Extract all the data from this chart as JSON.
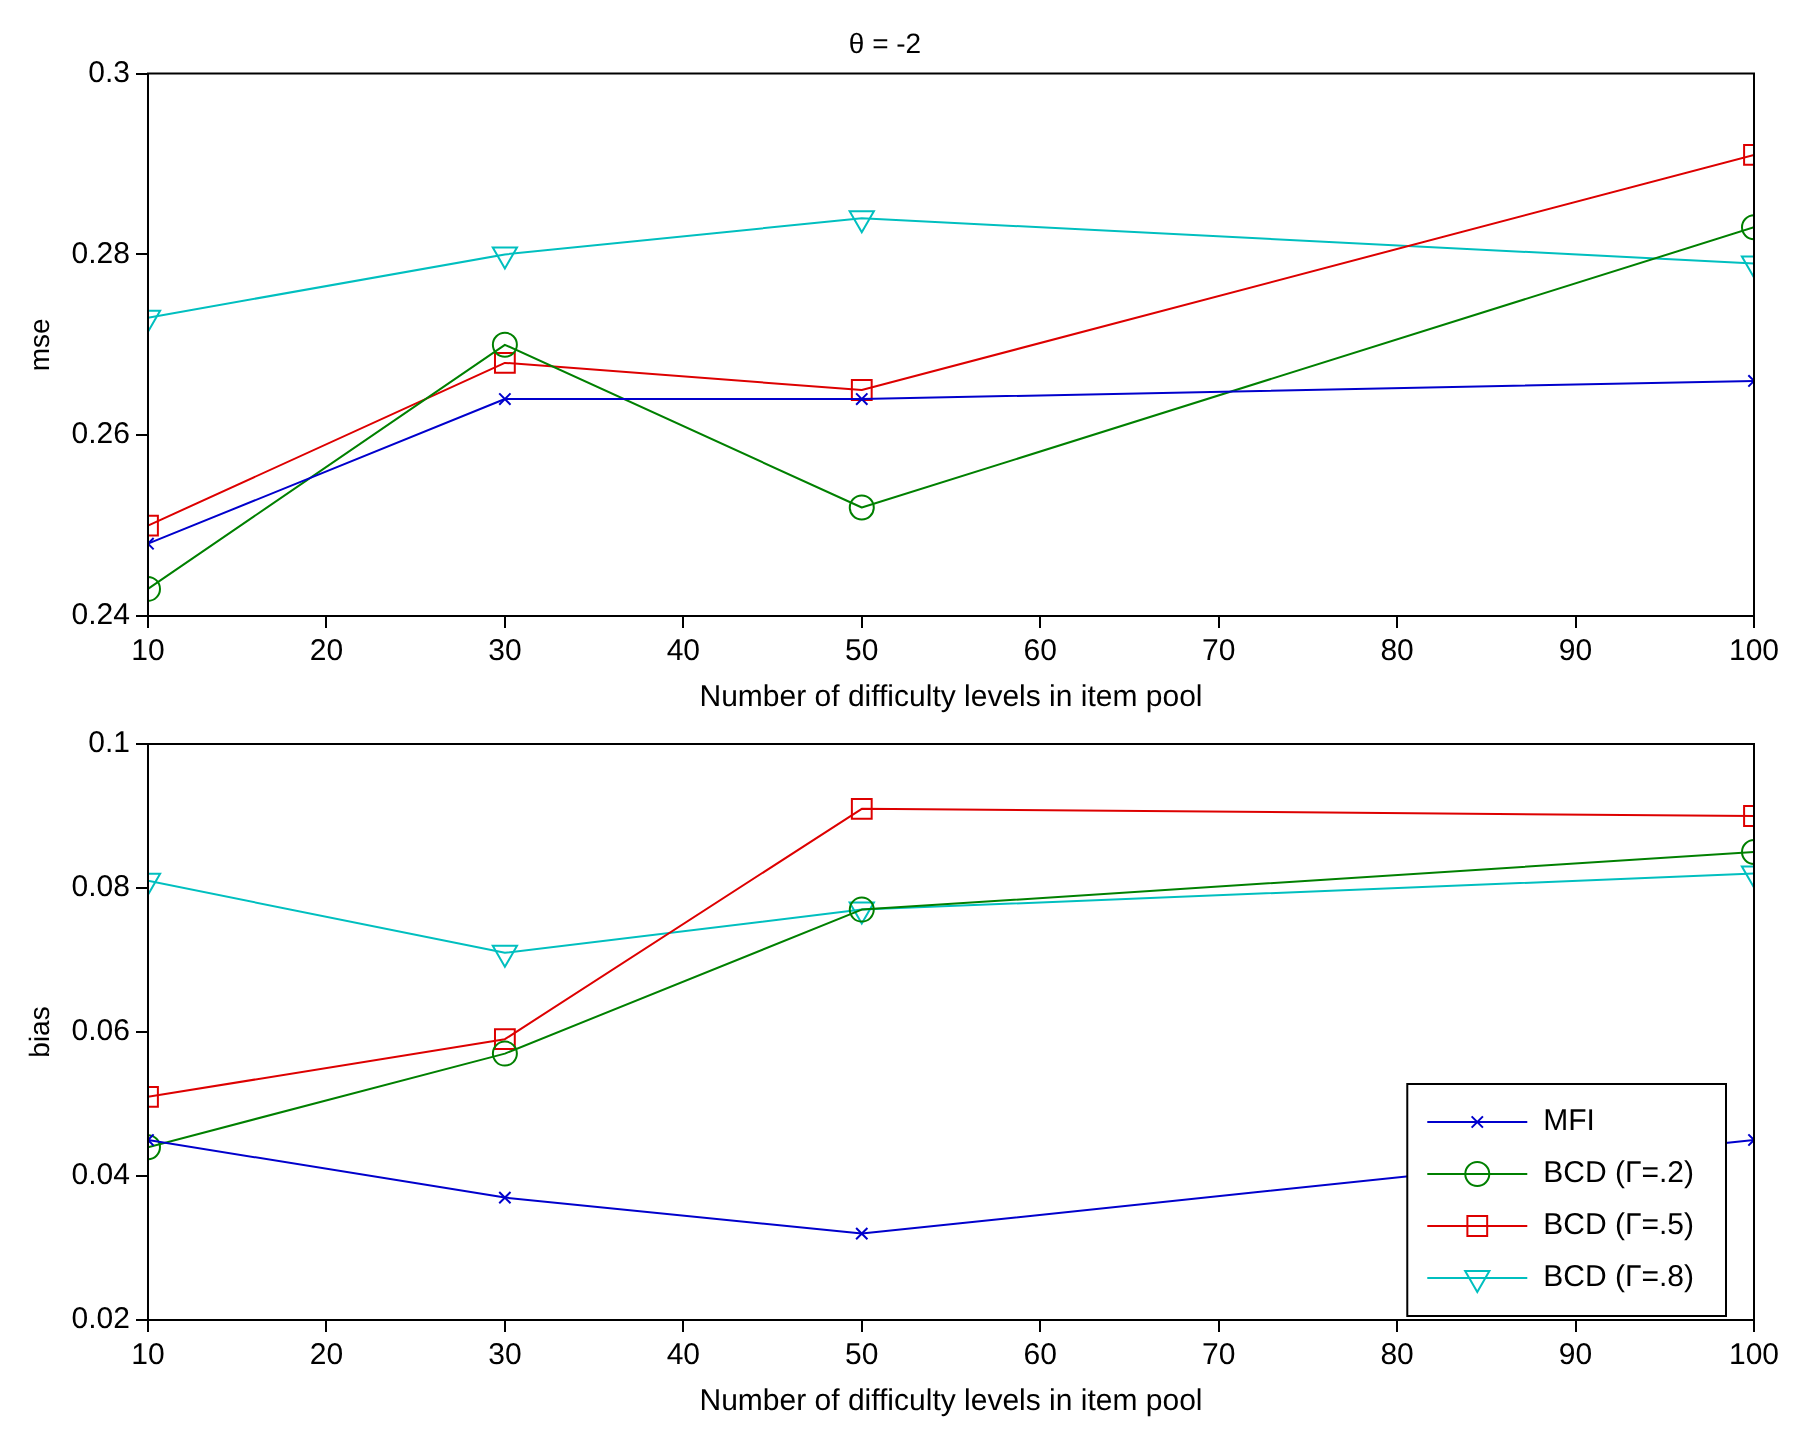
{
  "chart_data": [
    {
      "type": "line",
      "title": "θ = -2",
      "xlabel": "Number of difficulty levels in item pool",
      "ylabel": "mse",
      "x": [
        10,
        30,
        50,
        100
      ],
      "xlim": [
        10,
        100
      ],
      "xticks": [
        10,
        20,
        30,
        40,
        50,
        60,
        70,
        80,
        90,
        100
      ],
      "ylim": [
        0.24,
        0.3
      ],
      "yticks": [
        0.24,
        0.26,
        0.28,
        0.3
      ],
      "grid": false,
      "legend": false,
      "series": [
        {
          "color": "#0000cc",
          "marker": "cross",
          "values": [
            0.248,
            0.264,
            0.264,
            0.266
          ]
        },
        {
          "color": "#008000",
          "marker": "circle",
          "values": [
            0.243,
            0.27,
            0.252,
            0.283
          ]
        },
        {
          "color": "#dd0000",
          "marker": "square",
          "values": [
            0.25,
            0.268,
            0.265,
            0.291
          ]
        },
        {
          "color": "#00bfbf",
          "marker": "triangle",
          "values": [
            0.273,
            0.28,
            0.284,
            0.279
          ]
        }
      ]
    },
    {
      "type": "line",
      "xlabel": "Number of difficulty levels in item pool",
      "ylabel": "bias",
      "x": [
        10,
        30,
        50,
        100
      ],
      "xlim": [
        10,
        100
      ],
      "xticks": [
        10,
        20,
        30,
        40,
        50,
        60,
        70,
        80,
        90,
        100
      ],
      "ylim": [
        0.02,
        0.1
      ],
      "yticks": [
        0.02,
        0.04,
        0.06,
        0.08,
        0.1
      ],
      "grid": false,
      "legend": "bottom right",
      "series": [
        {
          "name": "MFI",
          "color": "#0000cc",
          "marker": "cross",
          "values": [
            0.045,
            0.037,
            0.032,
            0.045
          ]
        },
        {
          "name": "BCD (Γ=.2)",
          "color": "#008000",
          "marker": "circle",
          "values": [
            0.044,
            0.057,
            0.077,
            0.085
          ]
        },
        {
          "name": "BCD (Γ=.5)",
          "color": "#dd0000",
          "marker": "square",
          "values": [
            0.051,
            0.059,
            0.091,
            0.09
          ]
        },
        {
          "name": "BCD (Γ=.8)",
          "color": "#00bfbf",
          "marker": "triangle",
          "values": [
            0.081,
            0.071,
            0.077,
            0.082
          ]
        }
      ]
    }
  ]
}
